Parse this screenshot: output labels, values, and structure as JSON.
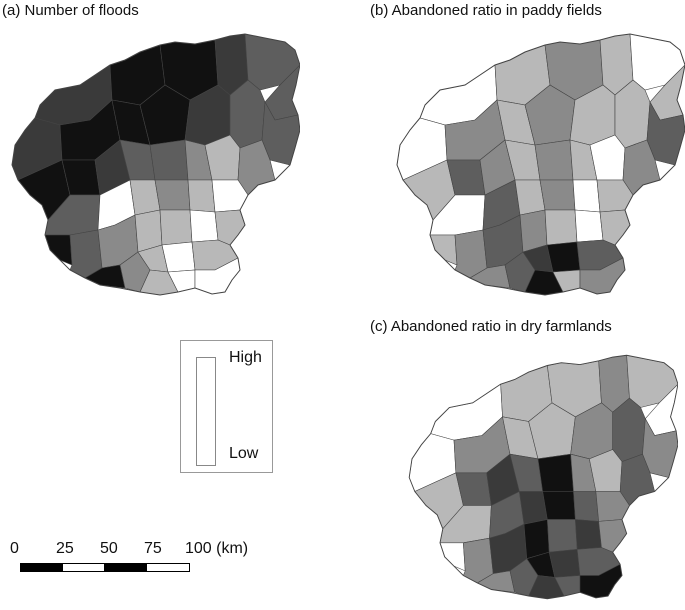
{
  "panels": {
    "a": {
      "title": "(a) Number of floods"
    },
    "b": {
      "title": "(b) Abandoned ratio in paddy fields"
    },
    "c": {
      "title": "(c) Abandoned ratio in dry farmlands"
    }
  },
  "legend": {
    "high": "High",
    "low": "Low"
  },
  "scale": {
    "ticks": [
      "0",
      "25",
      "50",
      "75",
      "100 (km)"
    ]
  },
  "colors": {
    "very_dark": "#111111",
    "dark": "#3a3a3a",
    "medium_dark": "#5e5e5e",
    "medium": "#8a8a8a",
    "light": "#b8b8b8",
    "white": "#ffffff",
    "border": "#444444"
  }
}
